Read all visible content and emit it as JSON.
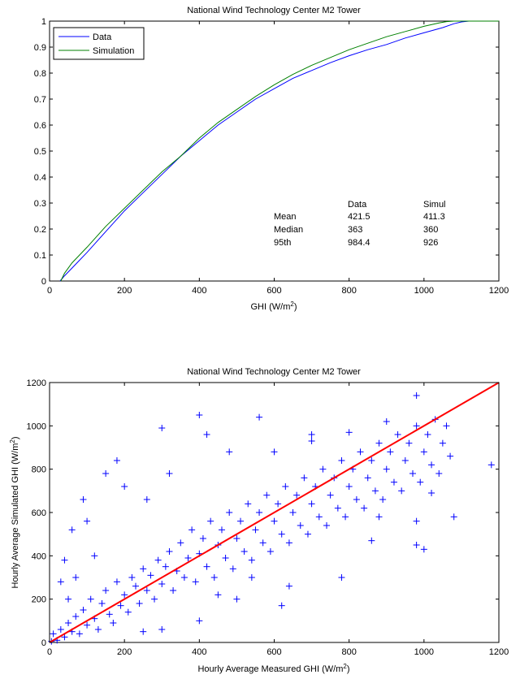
{
  "chart_data": [
    {
      "type": "line",
      "title": "National Wind Technology Center M2 Tower",
      "xlabel": "GHI (W/m",
      "xlabel_sup": "2",
      "xlabel_end": ")",
      "ylabel": "",
      "xlim": [
        0,
        1200
      ],
      "ylim": [
        0,
        1
      ],
      "xticks": [
        0,
        200,
        400,
        600,
        800,
        1000,
        1200
      ],
      "yticks": [
        0,
        0.1,
        0.2,
        0.3,
        0.4,
        0.5,
        0.6,
        0.7,
        0.8,
        0.9,
        1
      ],
      "grid": false,
      "legend_position": "top-left",
      "series": [
        {
          "name": "Data",
          "color": "#0000ff",
          "x": [
            28,
            40,
            60,
            80,
            100,
            150,
            200,
            250,
            300,
            350,
            400,
            450,
            500,
            550,
            600,
            650,
            700,
            750,
            800,
            850,
            900,
            950,
            1000,
            1050,
            1080,
            1100,
            1120,
            1150,
            1180,
            1200
          ],
          "y": [
            0,
            0.02,
            0.05,
            0.08,
            0.11,
            0.19,
            0.27,
            0.34,
            0.41,
            0.48,
            0.54,
            0.6,
            0.65,
            0.7,
            0.74,
            0.78,
            0.81,
            0.84,
            0.867,
            0.89,
            0.91,
            0.935,
            0.955,
            0.975,
            0.99,
            0.997,
            1.0,
            1.0,
            1.0,
            1.0
          ]
        },
        {
          "name": "Simulation",
          "color": "#008000",
          "x": [
            30,
            40,
            60,
            80,
            100,
            150,
            200,
            250,
            300,
            350,
            400,
            450,
            500,
            550,
            600,
            650,
            700,
            750,
            800,
            850,
            900,
            950,
            1000,
            1040,
            1060,
            1080,
            1100,
            1150,
            1200
          ],
          "y": [
            0,
            0.03,
            0.07,
            0.1,
            0.13,
            0.21,
            0.28,
            0.35,
            0.42,
            0.48,
            0.55,
            0.61,
            0.66,
            0.71,
            0.755,
            0.795,
            0.83,
            0.86,
            0.89,
            0.915,
            0.94,
            0.96,
            0.98,
            0.993,
            0.998,
            1.0,
            1.0,
            1.0,
            1.0
          ]
        }
      ],
      "stats_table": {
        "col_headers": [
          "Data",
          "Simul"
        ],
        "rows": [
          {
            "label": "Mean",
            "data": "421.5",
            "simul": "411.3"
          },
          {
            "label": "Median",
            "data": "363",
            "simul": "360"
          },
          {
            "label": "95th",
            "data": "984.4",
            "simul": "926"
          }
        ]
      }
    },
    {
      "type": "scatter",
      "title": "National Wind Technology Center M2 Tower",
      "xlabel": "Hourly Average Measured GHI (W/m",
      "xlabel_sup": "2",
      "xlabel_end": ")",
      "ylabel": "Hourly Average Simulated GHI (W/m",
      "ylabel_sup": "2",
      "ylabel_end": ")",
      "xlim": [
        0,
        1200
      ],
      "ylim": [
        0,
        1200
      ],
      "xticks": [
        0,
        200,
        400,
        600,
        800,
        1000,
        1200
      ],
      "yticks": [
        0,
        200,
        400,
        600,
        800,
        1000,
        1200
      ],
      "grid": false,
      "marker": "+",
      "series": [
        {
          "color": "#0000ff",
          "sample_points": [
            [
              5,
              5
            ],
            [
              10,
              40
            ],
            [
              20,
              10
            ],
            [
              30,
              60
            ],
            [
              40,
              25
            ],
            [
              50,
              90
            ],
            [
              60,
              50
            ],
            [
              70,
              120
            ],
            [
              80,
              40
            ],
            [
              90,
              150
            ],
            [
              100,
              80
            ],
            [
              110,
              200
            ],
            [
              120,
              110
            ],
            [
              130,
              60
            ],
            [
              140,
              180
            ],
            [
              150,
              240
            ],
            [
              160,
              130
            ],
            [
              170,
              90
            ],
            [
              180,
              280
            ],
            [
              190,
              170
            ],
            [
              200,
              220
            ],
            [
              210,
              140
            ],
            [
              220,
              300
            ],
            [
              230,
              260
            ],
            [
              240,
              180
            ],
            [
              250,
              340
            ],
            [
              260,
              240
            ],
            [
              270,
              310
            ],
            [
              280,
              200
            ],
            [
              290,
              380
            ],
            [
              300,
              270
            ],
            [
              310,
              350
            ],
            [
              320,
              420
            ],
            [
              330,
              240
            ],
            [
              340,
              330
            ],
            [
              350,
              460
            ],
            [
              360,
              300
            ],
            [
              370,
              390
            ],
            [
              380,
              520
            ],
            [
              390,
              280
            ],
            [
              400,
              410
            ],
            [
              410,
              480
            ],
            [
              420,
              350
            ],
            [
              430,
              560
            ],
            [
              440,
              300
            ],
            [
              450,
              450
            ],
            [
              460,
              520
            ],
            [
              470,
              390
            ],
            [
              480,
              600
            ],
            [
              490,
              340
            ],
            [
              500,
              480
            ],
            [
              510,
              560
            ],
            [
              520,
              420
            ],
            [
              530,
              640
            ],
            [
              540,
              380
            ],
            [
              550,
              520
            ],
            [
              560,
              600
            ],
            [
              570,
              460
            ],
            [
              580,
              680
            ],
            [
              590,
              420
            ],
            [
              600,
              560
            ],
            [
              610,
              640
            ],
            [
              620,
              500
            ],
            [
              630,
              720
            ],
            [
              640,
              460
            ],
            [
              650,
              600
            ],
            [
              660,
              680
            ],
            [
              670,
              540
            ],
            [
              680,
              760
            ],
            [
              690,
              500
            ],
            [
              700,
              640
            ],
            [
              710,
              720
            ],
            [
              720,
              580
            ],
            [
              730,
              800
            ],
            [
              740,
              540
            ],
            [
              750,
              680
            ],
            [
              760,
              760
            ],
            [
              770,
              620
            ],
            [
              780,
              840
            ],
            [
              790,
              580
            ],
            [
              800,
              720
            ],
            [
              810,
              800
            ],
            [
              820,
              660
            ],
            [
              830,
              880
            ],
            [
              840,
              620
            ],
            [
              850,
              760
            ],
            [
              860,
              840
            ],
            [
              870,
              700
            ],
            [
              880,
              920
            ],
            [
              890,
              660
            ],
            [
              900,
              800
            ],
            [
              910,
              880
            ],
            [
              920,
              740
            ],
            [
              930,
              960
            ],
            [
              940,
              700
            ],
            [
              950,
              840
            ],
            [
              960,
              920
            ],
            [
              970,
              780
            ],
            [
              980,
              1000
            ],
            [
              990,
              740
            ],
            [
              1000,
              880
            ],
            [
              1010,
              960
            ],
            [
              1020,
              820
            ],
            [
              1030,
              1030
            ],
            [
              1040,
              780
            ],
            [
              1050,
              920
            ],
            [
              1060,
              1000
            ],
            [
              1070,
              860
            ],
            [
              1080,
              580
            ],
            [
              150,
              780
            ],
            [
              180,
              840
            ],
            [
              90,
              660
            ],
            [
              60,
              520
            ],
            [
              40,
              380
            ],
            [
              300,
              990
            ],
            [
              400,
              1050
            ],
            [
              420,
              960
            ],
            [
              560,
              1040
            ],
            [
              900,
              1020
            ],
            [
              980,
              1140
            ],
            [
              200,
              720
            ],
            [
              320,
              780
            ],
            [
              260,
              660
            ],
            [
              480,
              880
            ],
            [
              700,
              960
            ],
            [
              540,
              300
            ],
            [
              640,
              260
            ],
            [
              860,
              470
            ],
            [
              780,
              300
            ],
            [
              620,
              170
            ],
            [
              500,
              200
            ],
            [
              400,
              100
            ],
            [
              300,
              60
            ],
            [
              250,
              50
            ],
            [
              450,
              220
            ],
            [
              980,
              450
            ],
            [
              1000,
              430
            ],
            [
              880,
              580
            ],
            [
              980,
              560
            ],
            [
              1180,
              820
            ],
            [
              1020,
              690
            ],
            [
              600,
              880
            ],
            [
              700,
              930
            ],
            [
              800,
              970
            ],
            [
              120,
              400
            ],
            [
              100,
              560
            ],
            [
              50,
              200
            ],
            [
              30,
              280
            ],
            [
              70,
              300
            ]
          ]
        },
        {
          "name": "",
          "color": "#ff0000",
          "type": "line",
          "x": [
            0,
            1200
          ],
          "y": [
            0,
            1200
          ]
        }
      ]
    }
  ]
}
